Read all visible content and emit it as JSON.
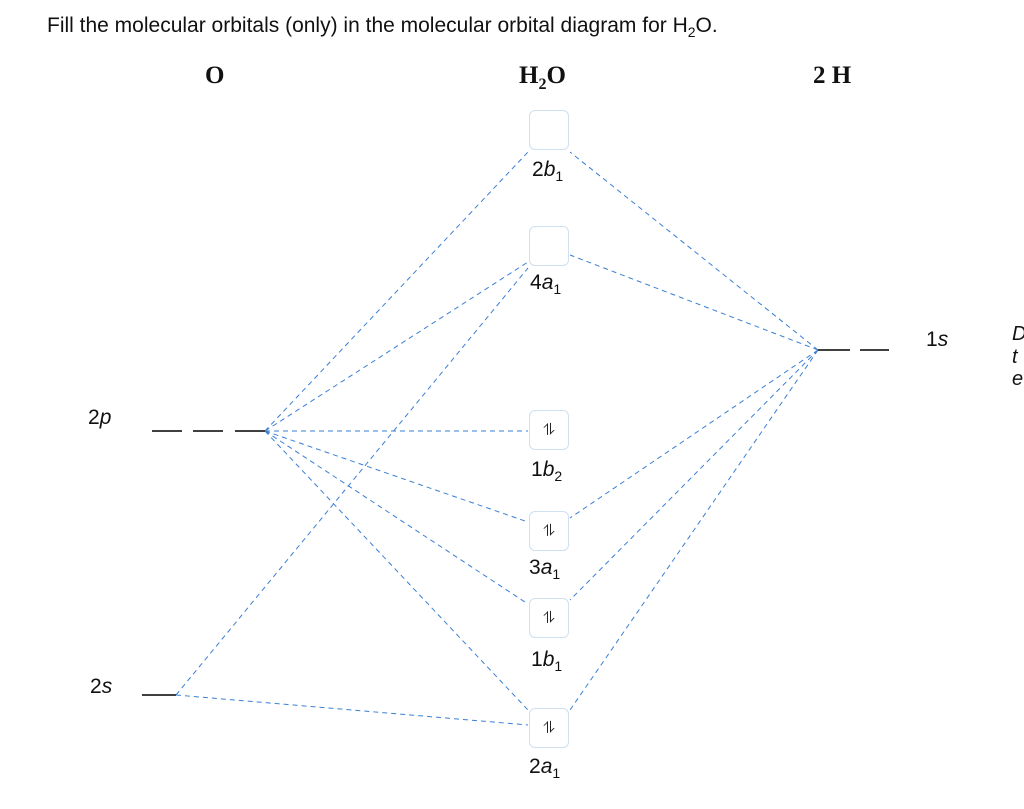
{
  "prompt": {
    "text_before": "Fill the molecular orbitals (only) in the molecular orbital diagram for H",
    "sub": "2",
    "text_after": "O."
  },
  "columns": {
    "left": "O",
    "middle_main": "H",
    "middle_sub": "2",
    "middle_tail": "O",
    "right": "2  H"
  },
  "atomic_orbitals": {
    "o_2p": {
      "num": "2",
      "letter": "p"
    },
    "o_2s": {
      "num": "2",
      "letter": "s"
    },
    "h_1s": {
      "num": "1",
      "letter": "s"
    }
  },
  "molecular_orbitals": [
    {
      "id": "2b1",
      "num": "2",
      "letter": "b",
      "sub": "1",
      "content": ""
    },
    {
      "id": "4a1",
      "num": "4",
      "letter": "a",
      "sub": "1",
      "content": ""
    },
    {
      "id": "1b2",
      "num": "1",
      "letter": "b",
      "sub": "2",
      "content": "⥮"
    },
    {
      "id": "3a1",
      "num": "3",
      "letter": "a",
      "sub": "1",
      "content": "⥮"
    },
    {
      "id": "1b1",
      "num": "1",
      "letter": "b",
      "sub": "1",
      "content": "⥮"
    },
    {
      "id": "2a1",
      "num": "2",
      "letter": "a",
      "sub": "1",
      "content": "⥮"
    }
  ],
  "cut_off_text": [
    "D",
    "t",
    "e"
  ],
  "colors": {
    "dashed_line": "#3a7fd5",
    "level_line": "#000000",
    "box_border": "#cfe0f0"
  }
}
